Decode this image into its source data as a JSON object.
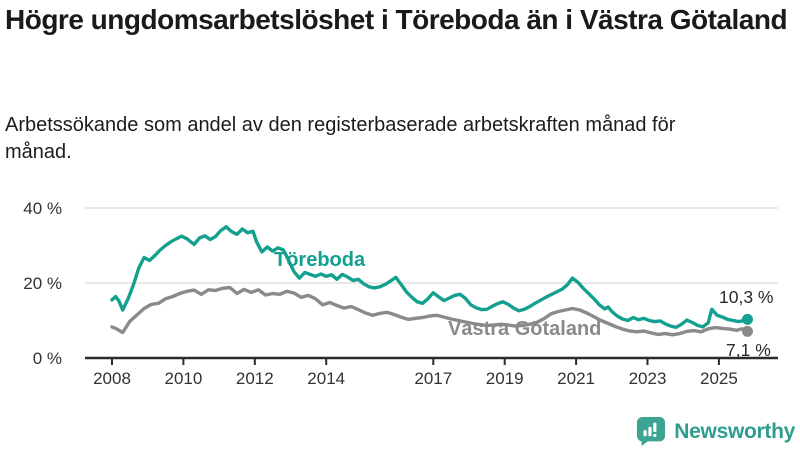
{
  "header": {
    "title": "Högre ungdomsarbetslöshet i Töreboda än i Västra Götaland",
    "subtitle": "Arbetssökande som andel av den registerbaserade arbetskraften månad för månad."
  },
  "chart_data": {
    "type": "line",
    "unit": "%",
    "title": "Högre ungdomsarbetslöshet i Töreboda än i Västra Götaland",
    "xlabel": "",
    "ylabel": "Arbetssökande som andel av den registerbaserade arbetskraften",
    "xlim": [
      2008,
      2025.9
    ],
    "ylim": [
      0,
      42
    ],
    "grid": "horizontal",
    "legend_position": "inline-labels-on-lines",
    "x_ticks": [
      {
        "value": 2008,
        "label": "2008"
      },
      {
        "value": 2010,
        "label": "2010"
      },
      {
        "value": 2012,
        "label": "2012"
      },
      {
        "value": 2014,
        "label": "2014"
      },
      {
        "value": 2017,
        "label": "2017"
      },
      {
        "value": 2019,
        "label": "2019"
      },
      {
        "value": 2021,
        "label": "2021"
      },
      {
        "value": 2023,
        "label": "2023"
      },
      {
        "value": 2025,
        "label": "2025"
      }
    ],
    "y_ticks": [
      {
        "value": 0,
        "label": "0 %"
      },
      {
        "value": 20,
        "label": "20 %"
      },
      {
        "value": 40,
        "label": "40 %"
      }
    ],
    "series": [
      {
        "name": "Töreboda",
        "color": "#14a08f",
        "end_label": "10,3 %",
        "last_value": 10.3,
        "points": [
          [
            2008.0,
            15.5
          ],
          [
            2008.1,
            16.4
          ],
          [
            2008.2,
            15.1
          ],
          [
            2008.3,
            12.8
          ],
          [
            2008.45,
            15.8
          ],
          [
            2008.6,
            19.5
          ],
          [
            2008.75,
            24.0
          ],
          [
            2008.9,
            26.8
          ],
          [
            2009.05,
            26.0
          ],
          [
            2009.2,
            27.3
          ],
          [
            2009.35,
            28.8
          ],
          [
            2009.5,
            30.0
          ],
          [
            2009.65,
            31.0
          ],
          [
            2009.8,
            31.8
          ],
          [
            2009.95,
            32.5
          ],
          [
            2010.1,
            31.8
          ],
          [
            2010.3,
            30.3
          ],
          [
            2010.45,
            32.0
          ],
          [
            2010.6,
            32.6
          ],
          [
            2010.75,
            31.6
          ],
          [
            2010.9,
            32.4
          ],
          [
            2011.05,
            34.0
          ],
          [
            2011.2,
            35.0
          ],
          [
            2011.35,
            33.7
          ],
          [
            2011.5,
            33.0
          ],
          [
            2011.65,
            34.4
          ],
          [
            2011.8,
            33.4
          ],
          [
            2011.95,
            33.8
          ],
          [
            2012.05,
            31.0
          ],
          [
            2012.2,
            28.3
          ],
          [
            2012.35,
            29.6
          ],
          [
            2012.5,
            28.5
          ],
          [
            2012.65,
            29.4
          ],
          [
            2012.8,
            28.8
          ],
          [
            2012.95,
            26.0
          ],
          [
            2013.1,
            23.0
          ],
          [
            2013.25,
            21.3
          ],
          [
            2013.4,
            22.8
          ],
          [
            2013.55,
            22.3
          ],
          [
            2013.7,
            21.8
          ],
          [
            2013.85,
            22.4
          ],
          [
            2014.0,
            21.8
          ],
          [
            2014.15,
            22.2
          ],
          [
            2014.3,
            21.0
          ],
          [
            2014.45,
            22.3
          ],
          [
            2014.6,
            21.6
          ],
          [
            2014.75,
            20.7
          ],
          [
            2014.9,
            21.0
          ],
          [
            2015.05,
            19.8
          ],
          [
            2015.2,
            19.0
          ],
          [
            2015.35,
            18.7
          ],
          [
            2015.5,
            19.0
          ],
          [
            2015.65,
            19.6
          ],
          [
            2015.8,
            20.5
          ],
          [
            2015.95,
            21.5
          ],
          [
            2016.1,
            19.6
          ],
          [
            2016.25,
            17.6
          ],
          [
            2016.4,
            16.2
          ],
          [
            2016.55,
            15.0
          ],
          [
            2016.7,
            14.6
          ],
          [
            2016.85,
            15.8
          ],
          [
            2017.0,
            17.4
          ],
          [
            2017.15,
            16.3
          ],
          [
            2017.3,
            15.3
          ],
          [
            2017.45,
            16.0
          ],
          [
            2017.6,
            16.7
          ],
          [
            2017.75,
            17.0
          ],
          [
            2017.9,
            15.9
          ],
          [
            2018.05,
            14.2
          ],
          [
            2018.2,
            13.4
          ],
          [
            2018.35,
            12.9
          ],
          [
            2018.5,
            13.0
          ],
          [
            2018.65,
            13.8
          ],
          [
            2018.8,
            14.5
          ],
          [
            2018.95,
            15.0
          ],
          [
            2019.1,
            14.3
          ],
          [
            2019.25,
            13.3
          ],
          [
            2019.4,
            12.6
          ],
          [
            2019.55,
            13.0
          ],
          [
            2019.7,
            13.7
          ],
          [
            2019.85,
            14.6
          ],
          [
            2020.0,
            15.4
          ],
          [
            2020.15,
            16.2
          ],
          [
            2020.3,
            16.9
          ],
          [
            2020.45,
            17.6
          ],
          [
            2020.6,
            18.3
          ],
          [
            2020.75,
            19.5
          ],
          [
            2020.9,
            21.3
          ],
          [
            2021.05,
            20.2
          ],
          [
            2021.2,
            18.6
          ],
          [
            2021.35,
            17.2
          ],
          [
            2021.5,
            15.8
          ],
          [
            2021.65,
            14.2
          ],
          [
            2021.8,
            13.1
          ],
          [
            2021.9,
            13.6
          ],
          [
            2022.0,
            12.4
          ],
          [
            2022.15,
            11.2
          ],
          [
            2022.3,
            10.4
          ],
          [
            2022.45,
            10.0
          ],
          [
            2022.6,
            10.8
          ],
          [
            2022.75,
            10.2
          ],
          [
            2022.9,
            10.6
          ],
          [
            2023.05,
            10.0
          ],
          [
            2023.2,
            9.7
          ],
          [
            2023.35,
            9.9
          ],
          [
            2023.5,
            9.1
          ],
          [
            2023.65,
            8.5
          ],
          [
            2023.8,
            8.2
          ],
          [
            2023.95,
            9.0
          ],
          [
            2024.1,
            10.1
          ],
          [
            2024.25,
            9.5
          ],
          [
            2024.4,
            8.7
          ],
          [
            2024.55,
            8.3
          ],
          [
            2024.7,
            9.4
          ],
          [
            2024.8,
            13.0
          ],
          [
            2024.95,
            11.4
          ],
          [
            2025.1,
            10.9
          ],
          [
            2025.25,
            10.3
          ],
          [
            2025.4,
            10.0
          ],
          [
            2025.55,
            9.7
          ],
          [
            2025.7,
            10.0
          ],
          [
            2025.8,
            10.3
          ]
        ]
      },
      {
        "name": "Västra Götaland",
        "color": "#8a8a8a",
        "end_label": "7,1 %",
        "last_value": 7.1,
        "points": [
          [
            2008.0,
            8.3
          ],
          [
            2008.1,
            7.9
          ],
          [
            2008.3,
            6.8
          ],
          [
            2008.5,
            9.8
          ],
          [
            2008.7,
            11.5
          ],
          [
            2008.9,
            13.2
          ],
          [
            2009.1,
            14.3
          ],
          [
            2009.3,
            14.6
          ],
          [
            2009.5,
            15.8
          ],
          [
            2009.7,
            16.4
          ],
          [
            2009.9,
            17.2
          ],
          [
            2010.1,
            17.8
          ],
          [
            2010.3,
            18.1
          ],
          [
            2010.5,
            17.0
          ],
          [
            2010.7,
            18.2
          ],
          [
            2010.9,
            18.0
          ],
          [
            2011.1,
            18.6
          ],
          [
            2011.3,
            18.8
          ],
          [
            2011.5,
            17.2
          ],
          [
            2011.7,
            18.3
          ],
          [
            2011.9,
            17.5
          ],
          [
            2012.1,
            18.2
          ],
          [
            2012.3,
            16.8
          ],
          [
            2012.5,
            17.2
          ],
          [
            2012.7,
            17.0
          ],
          [
            2012.9,
            17.8
          ],
          [
            2013.1,
            17.3
          ],
          [
            2013.3,
            16.2
          ],
          [
            2013.5,
            16.7
          ],
          [
            2013.7,
            15.8
          ],
          [
            2013.9,
            14.2
          ],
          [
            2014.1,
            14.8
          ],
          [
            2014.3,
            14.0
          ],
          [
            2014.5,
            13.3
          ],
          [
            2014.7,
            13.7
          ],
          [
            2014.9,
            12.9
          ],
          [
            2015.1,
            12.0
          ],
          [
            2015.3,
            11.4
          ],
          [
            2015.5,
            11.9
          ],
          [
            2015.7,
            12.2
          ],
          [
            2015.9,
            11.6
          ],
          [
            2016.1,
            10.9
          ],
          [
            2016.3,
            10.3
          ],
          [
            2016.5,
            10.6
          ],
          [
            2016.7,
            10.8
          ],
          [
            2016.9,
            11.2
          ],
          [
            2017.1,
            11.4
          ],
          [
            2017.3,
            10.9
          ],
          [
            2017.5,
            10.4
          ],
          [
            2017.7,
            10.0
          ],
          [
            2017.9,
            9.6
          ],
          [
            2018.1,
            9.2
          ],
          [
            2018.3,
            8.9
          ],
          [
            2018.5,
            8.7
          ],
          [
            2018.7,
            8.8
          ],
          [
            2018.9,
            9.0
          ],
          [
            2019.1,
            8.8
          ],
          [
            2019.3,
            8.5
          ],
          [
            2019.5,
            8.7
          ],
          [
            2019.7,
            9.0
          ],
          [
            2019.9,
            9.5
          ],
          [
            2020.1,
            10.5
          ],
          [
            2020.3,
            11.8
          ],
          [
            2020.5,
            12.4
          ],
          [
            2020.7,
            12.8
          ],
          [
            2020.9,
            13.2
          ],
          [
            2021.1,
            12.8
          ],
          [
            2021.3,
            12.0
          ],
          [
            2021.5,
            11.0
          ],
          [
            2021.7,
            10.0
          ],
          [
            2021.9,
            9.2
          ],
          [
            2022.1,
            8.4
          ],
          [
            2022.3,
            7.7
          ],
          [
            2022.5,
            7.2
          ],
          [
            2022.7,
            7.0
          ],
          [
            2022.9,
            7.2
          ],
          [
            2023.1,
            6.7
          ],
          [
            2023.3,
            6.3
          ],
          [
            2023.5,
            6.5
          ],
          [
            2023.7,
            6.2
          ],
          [
            2023.9,
            6.5
          ],
          [
            2024.1,
            7.1
          ],
          [
            2024.3,
            7.3
          ],
          [
            2024.5,
            7.0
          ],
          [
            2024.7,
            7.8
          ],
          [
            2024.9,
            8.1
          ],
          [
            2025.1,
            7.9
          ],
          [
            2025.3,
            7.7
          ],
          [
            2025.5,
            7.4
          ],
          [
            2025.65,
            7.8
          ],
          [
            2025.8,
            7.1
          ]
        ]
      }
    ]
  },
  "footer": {
    "brand": "Newsworthy",
    "logo_icon": "bar-chart-speech-bubble-icon",
    "brand_color": "#2e9d8e",
    "badge_color": "#3da494"
  },
  "colors": {
    "toreboda": "#14a08f",
    "vastra_gotaland": "#8a8a8a",
    "axis": "#2b2b2b",
    "grid": "#d9d9d9",
    "tick_text": "#333333",
    "end_label_text": "#2b2b2b"
  }
}
